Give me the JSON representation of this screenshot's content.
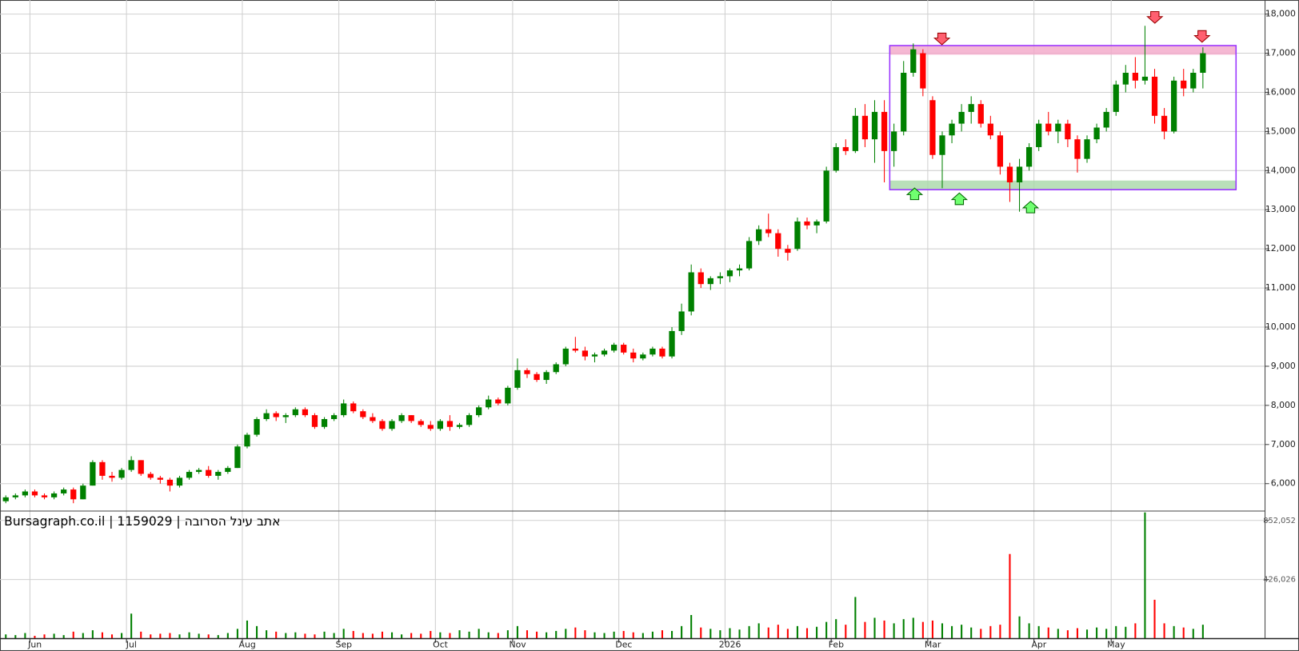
{
  "chart_data": [
    {
      "type": "candlestick",
      "up_color": "#008000",
      "down_color": "#ff0000",
      "grid": true,
      "ylim": [
        5300,
        18360
      ],
      "yticks": [
        {
          "value": 6000,
          "label": "6,000"
        },
        {
          "value": 7000,
          "label": "7,000"
        },
        {
          "value": 8000,
          "label": "8,000"
        },
        {
          "value": 9000,
          "label": "9,000"
        },
        {
          "value": 10000,
          "label": "10,000"
        },
        {
          "value": 11000,
          "label": "11,000"
        },
        {
          "value": 12000,
          "label": "12,000"
        },
        {
          "value": 13000,
          "label": "13,000"
        },
        {
          "value": 14000,
          "label": "14,000"
        },
        {
          "value": 15000,
          "label": "15,000"
        },
        {
          "value": 16000,
          "label": "16,000"
        },
        {
          "value": 17000,
          "label": "17,000"
        },
        {
          "value": 18000,
          "label": "18,000"
        }
      ],
      "categories": [
        null,
        null,
        null,
        "Jun",
        null,
        null,
        null,
        null,
        null,
        null,
        null,
        null,
        null,
        "Jul",
        null,
        null,
        null,
        null,
        null,
        null,
        null,
        null,
        null,
        null,
        null,
        "Aug",
        null,
        null,
        null,
        null,
        null,
        null,
        null,
        null,
        null,
        "Sep",
        null,
        null,
        null,
        null,
        null,
        null,
        null,
        null,
        null,
        "Oct",
        null,
        null,
        null,
        null,
        null,
        null,
        null,
        "Nov",
        null,
        null,
        null,
        null,
        null,
        null,
        null,
        null,
        null,
        null,
        "Dec",
        null,
        null,
        null,
        null,
        null,
        null,
        null,
        null,
        null,
        null,
        "2026",
        null,
        null,
        null,
        null,
        null,
        null,
        null,
        null,
        null,
        null,
        "Feb",
        null,
        null,
        null,
        null,
        null,
        null,
        null,
        null,
        null,
        "Mar",
        null,
        null,
        null,
        null,
        null,
        null,
        null,
        null,
        null,
        null,
        "Apr",
        null,
        null,
        null,
        null,
        null,
        null,
        null,
        "May",
        null,
        null,
        null,
        null,
        null,
        null,
        null,
        null,
        null
      ],
      "ohlc": [
        [
          5550,
          5700,
          5500,
          5650
        ],
        [
          5650,
          5750,
          5600,
          5700
        ],
        [
          5700,
          5850,
          5650,
          5800
        ],
        [
          5800,
          5850,
          5650,
          5700
        ],
        [
          5700,
          5750,
          5600,
          5650
        ],
        [
          5650,
          5800,
          5600,
          5750
        ],
        [
          5750,
          5900,
          5700,
          5850
        ],
        [
          5850,
          5900,
          5500,
          5600
        ],
        [
          5600,
          6000,
          5600,
          5950
        ],
        [
          5950,
          6600,
          5950,
          6550
        ],
        [
          6550,
          6600,
          6100,
          6200
        ],
        [
          6200,
          6300,
          6050,
          6150
        ],
        [
          6150,
          6400,
          6100,
          6350
        ],
        [
          6350,
          6700,
          6300,
          6600
        ],
        [
          6600,
          6600,
          6200,
          6250
        ],
        [
          6250,
          6300,
          6100,
          6150
        ],
        [
          6150,
          6200,
          6000,
          6100
        ],
        [
          6100,
          6150,
          5800,
          5950
        ],
        [
          5950,
          6200,
          5900,
          6150
        ],
        [
          6150,
          6350,
          6100,
          6300
        ],
        [
          6300,
          6400,
          6250,
          6350
        ],
        [
          6350,
          6450,
          6150,
          6200
        ],
        [
          6200,
          6350,
          6100,
          6300
        ],
        [
          6300,
          6450,
          6250,
          6400
        ],
        [
          6400,
          7000,
          6400,
          6950
        ],
        [
          6950,
          7300,
          6900,
          7250
        ],
        [
          7250,
          7700,
          7200,
          7650
        ],
        [
          7650,
          7900,
          7600,
          7800
        ],
        [
          7800,
          7850,
          7600,
          7700
        ],
        [
          7700,
          7800,
          7550,
          7750
        ],
        [
          7750,
          7950,
          7700,
          7900
        ],
        [
          7900,
          7950,
          7700,
          7750
        ],
        [
          7750,
          7800,
          7400,
          7450
        ],
        [
          7450,
          7700,
          7400,
          7650
        ],
        [
          7650,
          7800,
          7600,
          7750
        ],
        [
          7750,
          8150,
          7700,
          8050
        ],
        [
          8050,
          8100,
          7800,
          7850
        ],
        [
          7850,
          7900,
          7650,
          7700
        ],
        [
          7700,
          7800,
          7550,
          7600
        ],
        [
          7600,
          7650,
          7350,
          7400
        ],
        [
          7400,
          7650,
          7350,
          7600
        ],
        [
          7600,
          7800,
          7550,
          7750
        ],
        [
          7750,
          7750,
          7550,
          7600
        ],
        [
          7600,
          7650,
          7450,
          7500
        ],
        [
          7500,
          7600,
          7350,
          7400
        ],
        [
          7400,
          7650,
          7350,
          7600
        ],
        [
          7600,
          7750,
          7350,
          7450
        ],
        [
          7450,
          7550,
          7400,
          7500
        ],
        [
          7500,
          7800,
          7450,
          7750
        ],
        [
          7750,
          8000,
          7700,
          7950
        ],
        [
          7950,
          8250,
          7900,
          8150
        ],
        [
          8150,
          8200,
          8000,
          8050
        ],
        [
          8050,
          8500,
          8000,
          8450
        ],
        [
          8450,
          9200,
          8400,
          8900
        ],
        [
          8900,
          8950,
          8700,
          8800
        ],
        [
          8800,
          8850,
          8600,
          8650
        ],
        [
          8650,
          8900,
          8550,
          8850
        ],
        [
          8850,
          9100,
          8800,
          9050
        ],
        [
          9050,
          9500,
          9000,
          9450
        ],
        [
          9450,
          9750,
          9350,
          9400
        ],
        [
          9400,
          9500,
          9150,
          9250
        ],
        [
          9250,
          9350,
          9100,
          9300
        ],
        [
          9300,
          9450,
          9250,
          9400
        ],
        [
          9400,
          9600,
          9350,
          9550
        ],
        [
          9550,
          9600,
          9300,
          9350
        ],
        [
          9350,
          9450,
          9100,
          9200
        ],
        [
          9200,
          9350,
          9150,
          9300
        ],
        [
          9300,
          9500,
          9250,
          9450
        ],
        [
          9450,
          9500,
          9200,
          9250
        ],
        [
          9250,
          10000,
          9200,
          9900
        ],
        [
          9900,
          10600,
          9800,
          10400
        ],
        [
          10400,
          11600,
          10300,
          11400
        ],
        [
          11400,
          11500,
          11000,
          11100
        ],
        [
          11100,
          11300,
          10950,
          11250
        ],
        [
          11250,
          11400,
          11100,
          11300
        ],
        [
          11300,
          11500,
          11150,
          11450
        ],
        [
          11450,
          11600,
          11300,
          11500
        ],
        [
          11500,
          12300,
          11450,
          12200
        ],
        [
          12200,
          12600,
          12100,
          12500
        ],
        [
          12500,
          12900,
          12300,
          12400
        ],
        [
          12400,
          12500,
          11800,
          12000
        ],
        [
          12000,
          12100,
          11700,
          11900
        ],
        [
          12000,
          12800,
          11950,
          12700
        ],
        [
          12700,
          12800,
          12500,
          12600
        ],
        [
          12600,
          12750,
          12400,
          12700
        ],
        [
          12700,
          14100,
          12650,
          14000
        ],
        [
          14000,
          14700,
          13950,
          14600
        ],
        [
          14600,
          14800,
          14400,
          14500
        ],
        [
          14500,
          15600,
          14450,
          15400
        ],
        [
          15400,
          15700,
          14600,
          14800
        ],
        [
          14800,
          15800,
          14200,
          15500
        ],
        [
          15500,
          15800,
          13700,
          14500
        ],
        [
          14500,
          15200,
          14100,
          15000
        ],
        [
          15000,
          16800,
          14900,
          16500
        ],
        [
          16500,
          17250,
          16400,
          17100
        ],
        [
          17000,
          17100,
          15900,
          16100
        ],
        [
          15800,
          15900,
          14300,
          14400
        ],
        [
          14400,
          15000,
          13550,
          14900
        ],
        [
          14900,
          15300,
          14700,
          15200
        ],
        [
          15200,
          15700,
          15000,
          15500
        ],
        [
          15500,
          15900,
          15200,
          15700
        ],
        [
          15700,
          15800,
          15100,
          15200
        ],
        [
          15200,
          15400,
          14800,
          14900
        ],
        [
          14900,
          15000,
          13900,
          14100
        ],
        [
          14100,
          14200,
          13200,
          13700
        ],
        [
          13700,
          14300,
          12950,
          14100
        ],
        [
          14100,
          14700,
          14000,
          14600
        ],
        [
          14600,
          15300,
          14500,
          15200
        ],
        [
          15200,
          15500,
          14900,
          15000
        ],
        [
          15000,
          15300,
          14700,
          15200
        ],
        [
          15200,
          15300,
          14600,
          14800
        ],
        [
          14800,
          14900,
          13950,
          14300
        ],
        [
          14300,
          14900,
          14200,
          14800
        ],
        [
          14800,
          15200,
          14700,
          15100
        ],
        [
          15100,
          15600,
          15000,
          15500
        ],
        [
          15500,
          16300,
          15400,
          16200
        ],
        [
          16200,
          16700,
          16000,
          16500
        ],
        [
          16500,
          16900,
          16100,
          16300
        ],
        [
          16300,
          17700,
          16200,
          16400
        ],
        [
          16400,
          16600,
          15200,
          15400
        ],
        [
          15400,
          15600,
          14800,
          15000
        ],
        [
          15000,
          16400,
          14950,
          16300
        ],
        [
          16300,
          16600,
          15900,
          16100
        ],
        [
          16100,
          16600,
          16000,
          16500
        ],
        [
          16500,
          17150,
          16100,
          17000
        ]
      ]
    },
    {
      "type": "bar",
      "title": "Bursagraph.co.il | 1159029 | הבורסה לניע בתא",
      "up_color": "#008000",
      "down_color": "#ff0000",
      "grid": true,
      "ylim": [
        0,
        920000
      ],
      "yticks": [
        {
          "value": 426026,
          "label": "426,026"
        },
        {
          "value": 852052,
          "label": "852,052"
        }
      ],
      "values": [
        30000,
        25000,
        40000,
        20000,
        30000,
        35000,
        25000,
        50000,
        40000,
        60000,
        45000,
        30000,
        40000,
        180000,
        50000,
        30000,
        35000,
        40000,
        30000,
        45000,
        35000,
        30000,
        25000,
        40000,
        70000,
        130000,
        90000,
        60000,
        50000,
        40000,
        45000,
        35000,
        30000,
        50000,
        40000,
        70000,
        55000,
        40000,
        35000,
        50000,
        45000,
        30000,
        40000,
        35000,
        55000,
        45000,
        40000,
        60000,
        50000,
        70000,
        45000,
        40000,
        60000,
        90000,
        60000,
        50000,
        45000,
        55000,
        70000,
        80000,
        60000,
        45000,
        40000,
        50000,
        55000,
        45000,
        40000,
        50000,
        60000,
        55000,
        90000,
        170000,
        80000,
        70000,
        60000,
        75000,
        65000,
        90000,
        110000,
        80000,
        100000,
        70000,
        90000,
        75000,
        85000,
        120000,
        140000,
        100000,
        300000,
        120000,
        150000,
        130000,
        110000,
        140000,
        150000,
        120000,
        130000,
        110000,
        90000,
        100000,
        80000,
        70000,
        90000,
        100000,
        610000,
        160000,
        110000,
        90000,
        80000,
        70000,
        60000,
        75000,
        65000,
        80000,
        70000,
        90000,
        85000,
        110000,
        910000,
        280000,
        110000,
        90000,
        80000,
        70000,
        100000
      ]
    }
  ]
}
